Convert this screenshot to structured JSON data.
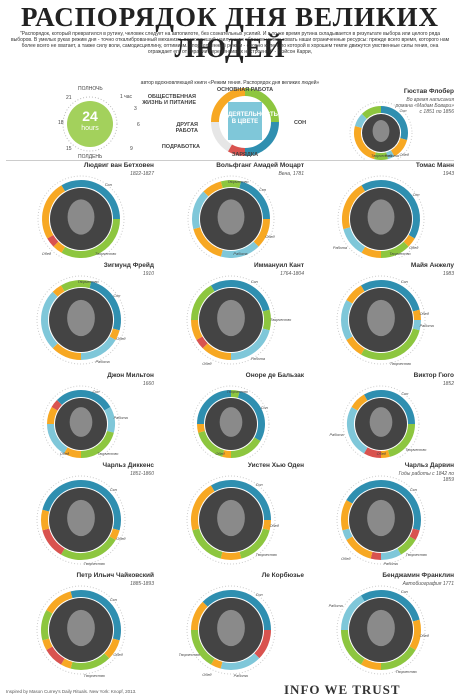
{
  "title": "РАСПОРЯДОК ДНЯ ВЕЛИКИХ ЛЮДЕЙ",
  "intro": "\"Распорядок, который превратился в рутину, человек следует на автопилоте, без сознательных усилий. И в то же время рутина складывается в результате выбора или целого ряда выборов. В умелых руках режим дня - точно откалиброванный механизм, позволяющий наилучшим образом использовать наши ограниченные ресурсы: прежде всего время, которого нам более всего не хватает, а также силу воли, самодисциплину, оптимизм. Упорядоченный режим - словно колея, по которой в хорошем темпе движутся умственные силы гения, она ограждает его от тирании переменчивых настроений\" - Мэйсон Карри,",
  "intro_author": "автор вдохновляющей книги «Режим гения. Распорядок дня великих людей»",
  "legend": {
    "midnight": "ПОЛНОЧЬ",
    "noon": "ПОЛДЕНЬ",
    "one_oclock": "1 час",
    "hours_num": "24",
    "hours_word": "hours",
    "ticks": [
      "21",
      "18",
      "15",
      "3",
      "6",
      "9"
    ],
    "cat_social": "ОБЩЕСТВЕННАЯ ЖИЗНЬ И ПИТАНИЕ",
    "cat_main": "ОСНОВНАЯ РАБОТА",
    "cat_other": "ДРУГАЯ РАБОТА",
    "cat_sleep": "СОН",
    "cat_prep": "ПОДРАБОТКА",
    "cat_exercise": "ЗАРЯДКА",
    "center": "ДЕЯТЕЛЬНОСТЬ В ЦВЕТЕ"
  },
  "colors": {
    "sleep": "#2f8fb0",
    "main": "#8dc63f",
    "social": "#f7a823",
    "other": "#7fc7d9",
    "exercise": "#d9534f",
    "rest": "#e6e6e6"
  },
  "people": [
    {
      "name": "Гюстав Флобер",
      "years": "Во время написания романа «Мадам Бовари» с 1851 по 1856",
      "col": 2,
      "row": 0
    },
    {
      "name": "Людвиг ван Бетховен",
      "years": "1822-1827",
      "col": 0,
      "row": 1
    },
    {
      "name": "Вольфганг Амадей Моцарт",
      "years": "Вена, 1781",
      "col": 1,
      "row": 1
    },
    {
      "name": "Томас Манн",
      "years": "1943",
      "col": 2,
      "row": 1
    },
    {
      "name": "Зигмунд Фрейд",
      "years": "1910",
      "col": 0,
      "row": 2
    },
    {
      "name": "Иммануил Кант",
      "years": "1764-1804",
      "col": 1,
      "row": 2
    },
    {
      "name": "Майя Анжелу",
      "years": "1983",
      "col": 2,
      "row": 2
    },
    {
      "name": "Джон Мильтон",
      "years": "1660",
      "col": 0,
      "row": 3
    },
    {
      "name": "Оноре де Бальзак",
      "years": "",
      "col": 1,
      "row": 3
    },
    {
      "name": "Виктор Гюго",
      "years": "1852",
      "col": 2,
      "row": 3
    },
    {
      "name": "Чарльз Диккенс",
      "years": "1851-1860",
      "col": 0,
      "row": 4
    },
    {
      "name": "Уистен Хью Оден",
      "years": "",
      "col": 1,
      "row": 4
    },
    {
      "name": "Чарльз Дарвин",
      "years": "Годы работы с 1842 по 1859",
      "col": 2,
      "row": 4
    },
    {
      "name": "Петр Ильич Чайковский",
      "years": "1885-1893",
      "col": 0,
      "row": 5
    },
    {
      "name": "Ле Корбюзье",
      "years": "",
      "col": 1,
      "row": 5
    },
    {
      "name": "Бенджамин Франклин",
      "years": "Автобиография 1771",
      "col": 2,
      "row": 5
    }
  ],
  "schedules": [
    [
      [
        0,
        7,
        "sleep"
      ],
      [
        7,
        10,
        "social"
      ],
      [
        10,
        11,
        "other"
      ],
      [
        11,
        13,
        "main"
      ],
      [
        13,
        19,
        "social"
      ],
      [
        19,
        21,
        "other"
      ],
      [
        21,
        24,
        "main"
      ]
    ],
    [
      [
        0,
        6,
        "sleep"
      ],
      [
        6,
        14,
        "main"
      ],
      [
        14,
        15,
        "social"
      ],
      [
        15,
        16,
        "exercise"
      ],
      [
        16,
        22,
        "social"
      ],
      [
        22,
        24,
        "sleep"
      ]
    ],
    [
      [
        0,
        1,
        "main"
      ],
      [
        1,
        6,
        "sleep"
      ],
      [
        6,
        9,
        "social"
      ],
      [
        9,
        13,
        "other"
      ],
      [
        13,
        17,
        "social"
      ],
      [
        17,
        21,
        "other"
      ],
      [
        21,
        23,
        "social"
      ],
      [
        23,
        24,
        "main"
      ]
    ],
    [
      [
        0,
        8,
        "sleep"
      ],
      [
        8,
        9,
        "social"
      ],
      [
        9,
        12,
        "main"
      ],
      [
        12,
        14,
        "social"
      ],
      [
        14,
        17,
        "other"
      ],
      [
        17,
        22,
        "social"
      ],
      [
        22,
        24,
        "sleep"
      ]
    ],
    [
      [
        0,
        1,
        "main"
      ],
      [
        1,
        7,
        "sleep"
      ],
      [
        7,
        8,
        "social"
      ],
      [
        8,
        12,
        "other"
      ],
      [
        12,
        15,
        "social"
      ],
      [
        15,
        21,
        "other"
      ],
      [
        21,
        22,
        "social"
      ],
      [
        22,
        24,
        "main"
      ]
    ],
    [
      [
        0,
        5,
        "sleep"
      ],
      [
        5,
        7,
        "main"
      ],
      [
        7,
        12,
        "other"
      ],
      [
        12,
        15,
        "social"
      ],
      [
        15,
        16,
        "exercise"
      ],
      [
        16,
        18,
        "social"
      ],
      [
        18,
        22,
        "main"
      ],
      [
        22,
        24,
        "sleep"
      ]
    ],
    [
      [
        0,
        5,
        "sleep"
      ],
      [
        5,
        6,
        "social"
      ],
      [
        6,
        7,
        "other"
      ],
      [
        7,
        14,
        "main"
      ],
      [
        14,
        16,
        "social"
      ],
      [
        16,
        20,
        "other"
      ],
      [
        20,
        22,
        "social"
      ],
      [
        22,
        24,
        "sleep"
      ]
    ],
    [
      [
        0,
        4,
        "sleep"
      ],
      [
        4,
        7,
        "other"
      ],
      [
        7,
        12,
        "main"
      ],
      [
        12,
        14,
        "social"
      ],
      [
        14,
        18,
        "other"
      ],
      [
        18,
        20,
        "social"
      ],
      [
        20,
        21,
        "exercise"
      ],
      [
        21,
        24,
        "sleep"
      ]
    ],
    [
      [
        0,
        1,
        "main"
      ],
      [
        1,
        8,
        "sleep"
      ],
      [
        8,
        12,
        "main"
      ],
      [
        12,
        13,
        "social"
      ],
      [
        13,
        17,
        "main"
      ],
      [
        17,
        18,
        "social"
      ],
      [
        18,
        24,
        "sleep"
      ]
    ],
    [
      [
        0,
        6,
        "sleep"
      ],
      [
        6,
        11,
        "main"
      ],
      [
        11,
        12,
        "social"
      ],
      [
        12,
        14,
        "exercise"
      ],
      [
        14,
        20,
        "other"
      ],
      [
        20,
        22,
        "social"
      ],
      [
        22,
        24,
        "sleep"
      ]
    ],
    [
      [
        0,
        7,
        "sleep"
      ],
      [
        7,
        8,
        "social"
      ],
      [
        8,
        14,
        "main"
      ],
      [
        14,
        17,
        "exercise"
      ],
      [
        17,
        19,
        "social"
      ],
      [
        19,
        24,
        "sleep"
      ]
    ],
    [
      [
        0,
        6,
        "sleep"
      ],
      [
        6,
        7,
        "social"
      ],
      [
        7,
        11,
        "main"
      ],
      [
        11,
        13,
        "social"
      ],
      [
        13,
        17,
        "main"
      ],
      [
        17,
        22,
        "social"
      ],
      [
        22,
        24,
        "sleep"
      ]
    ],
    [
      [
        0,
        7,
        "sleep"
      ],
      [
        7,
        8,
        "exercise"
      ],
      [
        8,
        10,
        "main"
      ],
      [
        10,
        12,
        "other"
      ],
      [
        12,
        13,
        "exercise"
      ],
      [
        13,
        16,
        "social"
      ],
      [
        16,
        17,
        "other"
      ],
      [
        17,
        20,
        "social"
      ],
      [
        20,
        24,
        "sleep"
      ]
    ],
    [
      [
        0,
        7,
        "sleep"
      ],
      [
        7,
        9,
        "social"
      ],
      [
        9,
        13,
        "main"
      ],
      [
        13,
        14,
        "social"
      ],
      [
        14,
        16,
        "exercise"
      ],
      [
        16,
        17,
        "social"
      ],
      [
        17,
        20,
        "main"
      ],
      [
        20,
        23,
        "social"
      ],
      [
        23,
        24,
        "sleep"
      ]
    ],
    [
      [
        0,
        6,
        "sleep"
      ],
      [
        6,
        9,
        "exercise"
      ],
      [
        9,
        13,
        "other"
      ],
      [
        13,
        14,
        "social"
      ],
      [
        14,
        18,
        "main"
      ],
      [
        18,
        21,
        "social"
      ],
      [
        21,
        24,
        "sleep"
      ]
    ],
    [
      [
        0,
        5,
        "sleep"
      ],
      [
        5,
        8,
        "social"
      ],
      [
        8,
        12,
        "main"
      ],
      [
        12,
        14,
        "social"
      ],
      [
        14,
        18,
        "main"
      ],
      [
        18,
        22,
        "other"
      ],
      [
        22,
        24,
        "sleep"
      ]
    ]
  ],
  "labels": {
    "sleep": "Сон",
    "main": "Творчество",
    "social": "Обед",
    "other": "Работа"
  },
  "footer": "Inspired by Mason Currey's Daily Rituals. New York: Knopf, 2013.",
  "brand": "INFO WE TRUST"
}
